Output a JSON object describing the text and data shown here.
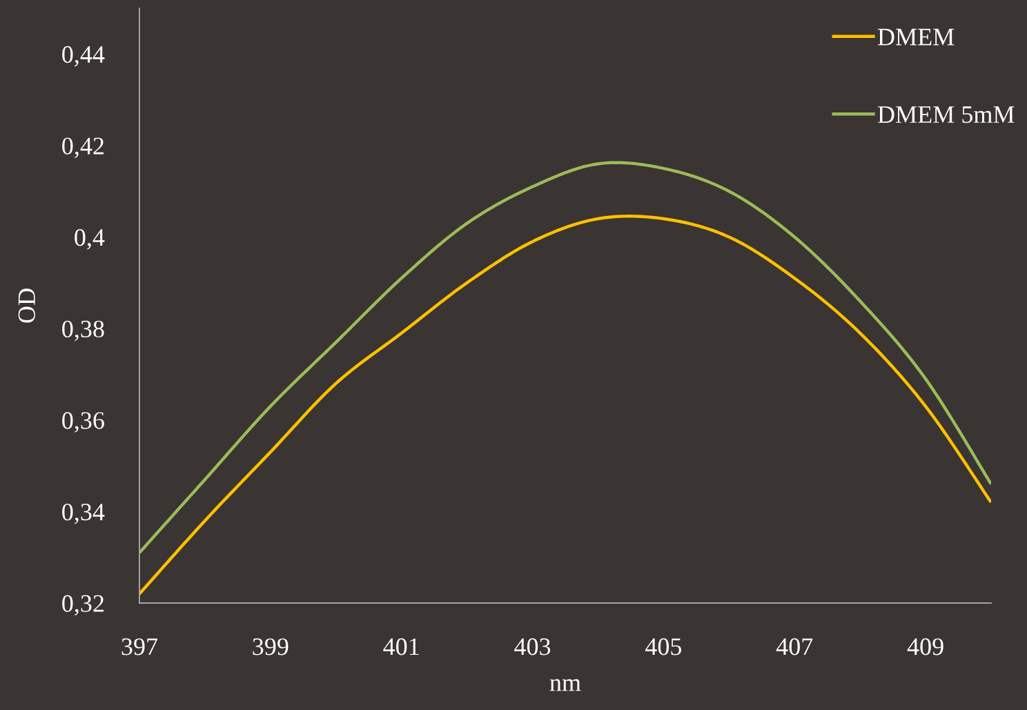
{
  "chart_data": {
    "type": "line",
    "xlabel": "nm",
    "ylabel": "OD",
    "x": [
      397,
      398,
      399,
      400,
      401,
      402,
      403,
      404,
      405,
      406,
      407,
      408,
      409,
      410
    ],
    "series": [
      {
        "name": "DMEM",
        "color": "#ffc000",
        "values": [
          0.322,
          0.338,
          0.353,
          0.368,
          0.379,
          0.39,
          0.399,
          0.404,
          0.404,
          0.4,
          0.391,
          0.379,
          0.363,
          0.342
        ]
      },
      {
        "name": "DMEM 5mM",
        "color": "#9bbb59",
        "values": [
          0.331,
          0.347,
          0.363,
          0.377,
          0.391,
          0.403,
          0.411,
          0.416,
          0.415,
          0.41,
          0.4,
          0.386,
          0.369,
          0.346
        ]
      }
    ],
    "xlim": [
      397,
      410
    ],
    "ylim": [
      0.32,
      0.45
    ],
    "xticks": [
      397,
      399,
      401,
      403,
      405,
      407,
      409
    ],
    "yticks": [
      {
        "value": 0.32,
        "label": "0,32"
      },
      {
        "value": 0.34,
        "label": "0,34"
      },
      {
        "value": 0.36,
        "label": "0,36"
      },
      {
        "value": 0.38,
        "label": "0,38"
      },
      {
        "value": 0.4,
        "label": "0,4"
      },
      {
        "value": 0.42,
        "label": "0,42"
      },
      {
        "value": 0.44,
        "label": "0,44"
      }
    ],
    "legend": "top right",
    "line_style": "solid"
  }
}
